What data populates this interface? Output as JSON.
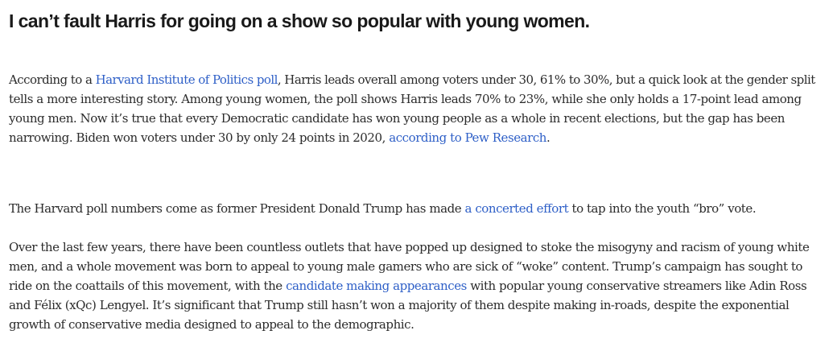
{
  "article": {
    "headline": "I can’t fault Harris for going on a show so popular with young women.",
    "p1": {
      "l1_a": "According to a ",
      "link1": "Harvard Institute of Politics poll",
      "l1_b": ", Harris leads overall among voters under 30, 61% to 30%, but a quick look at the gender split",
      "l2": "tells a more interesting story. Among young women, the poll shows Harris leads 70% to 23%, while she only holds a 17-point lead among",
      "l3": "young men. Now it’s true that every Democratic candidate has won young people as a whole in recent elections, but the gap has been",
      "l4_a": "narrowing. Biden won voters under 30 by only 24 points in 2020, ",
      "link2": "according to Pew Research",
      "l4_b": "."
    },
    "p2": {
      "l1_a": "The Harvard poll numbers come as former President Donald Trump has made ",
      "link": "a concerted effort",
      "l1_b": " to tap into the youth “bro” vote."
    },
    "p3": {
      "l1": "Over the last few years, there have been countless outlets that have popped up designed to stoke the misogyny and racism of young white",
      "l2": "men, and a whole movement was born to appeal to young male gamers who are sick of “woke” content. Trump’s campaign has sought to",
      "l3_a": "ride on the coattails of this movement, with the ",
      "link": "candidate making appearances",
      "l3_b": " with popular young conservative streamers like Adin Ross",
      "l4": "and Félix (xQc) Lengyel. It’s significant that Trump still hasn’t won a majority of them despite making in-roads, despite the exponential",
      "l5": "growth of conservative media designed to appeal to the demographic."
    }
  },
  "colors": {
    "text": "#2b2b2b",
    "headline": "#1a1a1a",
    "link": "#2e5fc7",
    "background": "#ffffff"
  }
}
